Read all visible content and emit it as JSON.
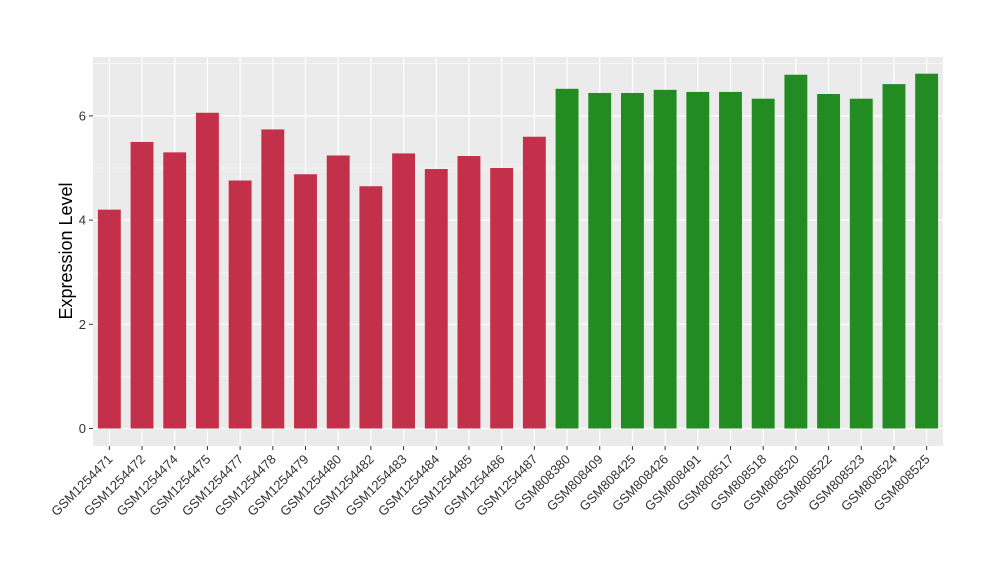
{
  "chart_data": {
    "type": "bar",
    "title": "",
    "xlabel": "",
    "ylabel": "Expression Level",
    "ylim": [
      0,
      7.1
    ],
    "yticks": [
      0,
      2,
      4,
      6
    ],
    "ytick_labels": [
      "0",
      "2",
      "4",
      "6"
    ],
    "grid": true,
    "legend": "none",
    "colors": {
      "panel": "#EBEBEB",
      "grid": "#FFFFFF",
      "group_a": "#C3304A",
      "group_b": "#228B22"
    },
    "categories": [
      "GSM1254471",
      "GSM1254472",
      "GSM1254474",
      "GSM1254475",
      "GSM1254477",
      "GSM1254478",
      "GSM1254479",
      "GSM1254480",
      "GSM1254482",
      "GSM1254483",
      "GSM1254484",
      "GSM1254485",
      "GSM1254486",
      "GSM1254487",
      "GSM808380",
      "GSM808409",
      "GSM808425",
      "GSM808426",
      "GSM808491",
      "GSM808517",
      "GSM808518",
      "GSM808520",
      "GSM808522",
      "GSM808523",
      "GSM808524",
      "GSM808525"
    ],
    "values": [
      4.2,
      5.5,
      5.3,
      6.06,
      4.76,
      5.74,
      4.88,
      5.24,
      4.65,
      5.28,
      4.98,
      5.23,
      5.0,
      5.6,
      6.52,
      6.44,
      6.44,
      6.5,
      6.46,
      6.46,
      6.33,
      6.79,
      6.42,
      6.33,
      6.61,
      6.81
    ],
    "bar_groups": [
      "group_a",
      "group_a",
      "group_a",
      "group_a",
      "group_a",
      "group_a",
      "group_a",
      "group_a",
      "group_a",
      "group_a",
      "group_a",
      "group_a",
      "group_a",
      "group_a",
      "group_b",
      "group_b",
      "group_b",
      "group_b",
      "group_b",
      "group_b",
      "group_b",
      "group_b",
      "group_b",
      "group_b",
      "group_b",
      "group_b"
    ]
  }
}
